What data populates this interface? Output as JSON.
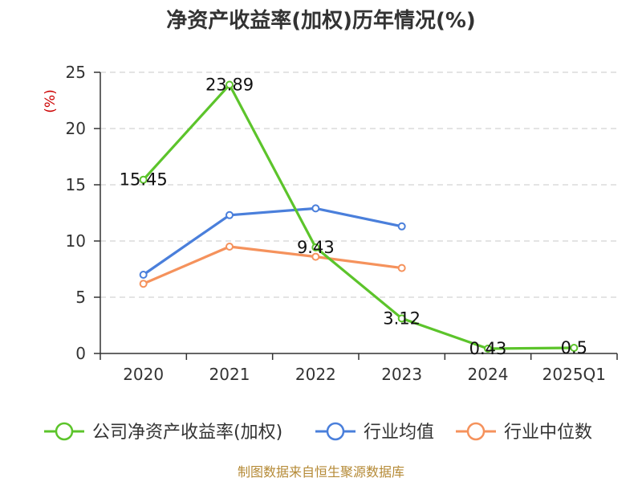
{
  "chart_data": {
    "type": "line",
    "title": "净资产收益率(加权)历年情况(%)",
    "ylabel": "(%)",
    "categories": [
      "2020",
      "2021",
      "2022",
      "2023",
      "2024",
      "2025Q1"
    ],
    "ylim": [
      0,
      25
    ],
    "yticks": [
      0,
      5,
      10,
      15,
      20,
      25
    ],
    "grid": true,
    "legend_position": "bottom",
    "series": [
      {
        "name": "公司净资产收益率(加权)",
        "color": "#5cc42b",
        "values": [
          15.45,
          23.89,
          9.43,
          3.12,
          0.43,
          0.5
        ],
        "labels": [
          "15.45",
          "23.89",
          "9.43",
          "3.12",
          "0.43",
          "0.5"
        ]
      },
      {
        "name": "行业均值",
        "color": "#4a7fdb",
        "values": [
          7.0,
          12.3,
          12.9,
          11.3,
          null,
          null
        ]
      },
      {
        "name": "行业中位数",
        "color": "#f5925c",
        "values": [
          6.2,
          9.5,
          8.6,
          7.6,
          null,
          null
        ]
      }
    ],
    "source": "制图数据来自恒生聚源数据库"
  }
}
